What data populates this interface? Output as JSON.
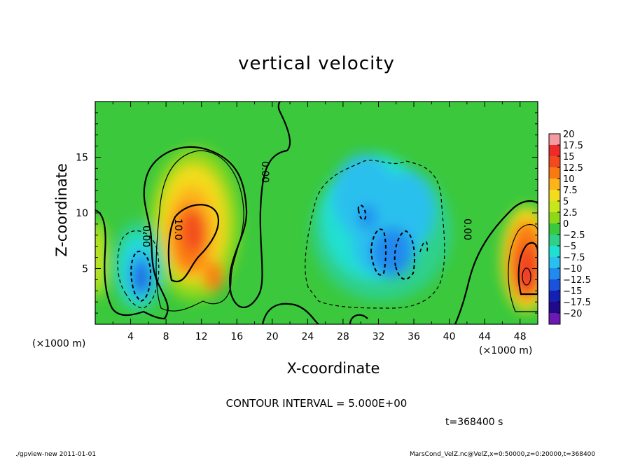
{
  "chart_data": {
    "type": "heatmap",
    "title": "vertical velocity",
    "xlabel": "X-coordinate",
    "ylabel": "Z-coordinate",
    "x_unit": "(×1000 m)",
    "xlim": [
      0,
      50
    ],
    "ylim": [
      0,
      20
    ],
    "x_ticks": [
      4,
      8,
      12,
      16,
      20,
      24,
      28,
      32,
      36,
      40,
      44,
      48
    ],
    "y_ticks": [
      5,
      10,
      15
    ],
    "colorbar": {
      "levels": [
        20,
        17.5,
        15,
        12.5,
        10,
        7.5,
        5,
        2.5,
        0,
        -2.5,
        -5,
        -7.5,
        -10,
        -12.5,
        -15,
        -17.5,
        -20
      ],
      "level_labels": [
        "20",
        "17.5",
        "15",
        "12.5",
        "10",
        "7.5",
        "5",
        "2.5",
        "0",
        "−2.5",
        "−5",
        "−7.5",
        "−10",
        "−12.5",
        "−15",
        "−17.5",
        "−20"
      ],
      "colors": [
        "#f59aa0",
        "#ee2a2a",
        "#f24a1e",
        "#fa7a12",
        "#fdb41a",
        "#f3dc1e",
        "#c8e61e",
        "#8ed81c",
        "#3ac83c",
        "#2ed08a",
        "#20e0d2",
        "#2ac0ee",
        "#208aee",
        "#1a52de",
        "#1420b4",
        "#200a8a",
        "#6a1ab4"
      ]
    },
    "contour_labels": [
      "0.00",
      "10.0",
      "0.00",
      "0.00"
    ],
    "features": [
      {
        "sign": "negative",
        "x": 5.2,
        "z": 4.2,
        "min_value": -12.5
      },
      {
        "sign": "positive",
        "x": 11.0,
        "z": 8.0,
        "max_value": 12.5
      },
      {
        "sign": "positive",
        "x": 49.0,
        "z": 4.5,
        "max_value": 15
      },
      {
        "sign": "negative",
        "x": 32.5,
        "z": 8.5,
        "min_value": -10
      },
      {
        "sign": "positive",
        "x": 0.3,
        "z": 5.0,
        "max_value": 7.5
      }
    ],
    "contour_interval": "CONTOUR INTERVAL = 5.000E+00"
  },
  "time_label": "t=368400 s",
  "footer_left": "./gpview-new   2011-01-01",
  "footer_right": "MarsCond_VelZ.nc@VelZ,x=0:50000,z=0:20000,t=368400"
}
